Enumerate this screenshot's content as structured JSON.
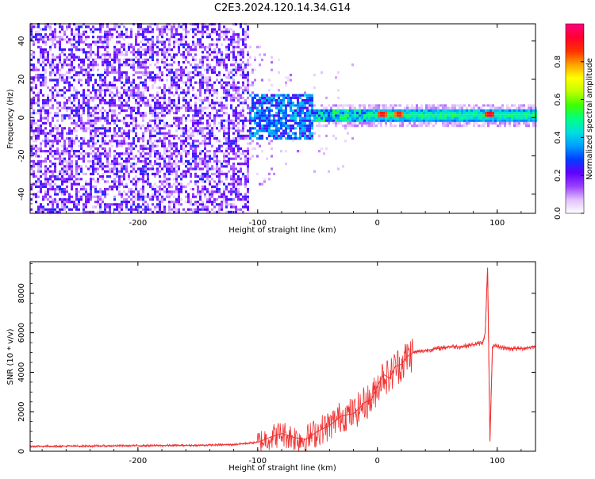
{
  "figure": {
    "title": "C2E3.2024.120.14.34.G14"
  },
  "chart_data": [
    {
      "type": "heatmap",
      "xlabel": "Height of straight line (km)",
      "ylabel": "Frequency (Hz)",
      "xlim": [
        -290,
        132
      ],
      "ylim": [
        -50,
        49
      ],
      "xticks": [
        -200,
        -100,
        0,
        100
      ],
      "yticks": [
        -40,
        -20,
        0,
        20,
        40
      ],
      "grid": false,
      "colorbar": {
        "label": "Normalized spectral amplitude",
        "range": [
          0,
          1
        ],
        "ticks": [
          0,
          0.2,
          0.4,
          0.6,
          0.8
        ],
        "colors": [
          "#ffffff",
          "#e0c0ff",
          "#9a40ff",
          "#6000ff",
          "#0040ff",
          "#00a0ff",
          "#00e0e0",
          "#00ff80",
          "#40ff00",
          "#c0ff00",
          "#ffff00",
          "#ffa000",
          "#ff3000",
          "#ff0030",
          "#ff0080"
        ]
      },
      "features": [
        {
          "description_x": [
            -290,
            -108
          ],
          "band_hz": [
            -50,
            49
          ],
          "amplitude": 0.22
        },
        {
          "description_x": [
            -108,
            -50
          ],
          "band_hz": [
            -12,
            12
          ],
          "amplitude": 0.3
        },
        {
          "description_x": [
            -55,
            132
          ],
          "band_hz": [
            -3,
            4
          ],
          "amplitude": 0.5
        },
        {
          "peak_x": 3,
          "amplitude": 0.92
        },
        {
          "peak_x": 17,
          "amplitude": 0.9
        },
        {
          "peak_x": 93,
          "amplitude": 0.95
        }
      ]
    },
    {
      "type": "line",
      "xlabel": "Height of straight line (km)",
      "ylabel": "SNR (10 * v/v)",
      "xlim": [
        -290,
        132
      ],
      "ylim": [
        0,
        9600
      ],
      "xticks": [
        -200,
        -100,
        0,
        100
      ],
      "yticks": [
        0,
        2000,
        4000,
        6000,
        8000
      ],
      "grid": false,
      "color": "#f03030",
      "series": [
        {
          "x": [
            -290,
            -250,
            -200,
            -150,
            -120,
            -100,
            -90,
            -80,
            -70,
            -60,
            -50,
            -40,
            -30,
            -20,
            -10,
            -5,
            0,
            5,
            10,
            15,
            20,
            25,
            30,
            40,
            50,
            60,
            70,
            80,
            88,
            90,
            92,
            94,
            96,
            100,
            110,
            120,
            132
          ],
          "values": [
            250,
            260,
            280,
            300,
            340,
            450,
            700,
            900,
            700,
            600,
            1000,
            1300,
            1800,
            1900,
            2500,
            2600,
            3300,
            3900,
            3700,
            4300,
            4400,
            4800,
            5000,
            5100,
            5200,
            5300,
            5300,
            5400,
            5500,
            6000,
            9300,
            500,
            5300,
            5300,
            5200,
            5200,
            5300
          ]
        }
      ]
    }
  ]
}
